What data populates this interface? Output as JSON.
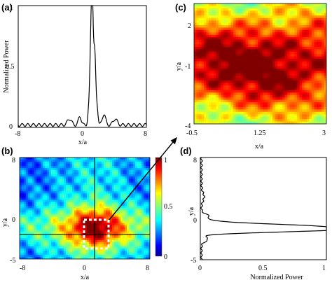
{
  "figure": {
    "background": "#ffffff"
  },
  "chart_data": [
    {
      "panel": "(a)",
      "type": "line",
      "xlabel": "x/a",
      "ylabel": "Normalized Power",
      "xlim": [
        -8,
        8
      ],
      "ylim": [
        0,
        1
      ],
      "xticks": [
        "-8",
        "0",
        "8"
      ],
      "yticks": [
        "0",
        "0.5",
        "1"
      ],
      "color": "#000000",
      "peaks": [
        {
          "center": 1.25,
          "height": 0.96,
          "width": 0.12
        },
        {
          "center": 1.05,
          "height": 0.55,
          "width": 0.12
        },
        {
          "center": 1.55,
          "height": 0.58,
          "width": 0.13
        },
        {
          "center": 0.8,
          "height": 0.12,
          "width": 0.12
        },
        {
          "center": 1.85,
          "height": 0.14,
          "width": 0.12
        },
        {
          "center": -0.3,
          "height": 0.07,
          "width": 0.18
        },
        {
          "center": 2.7,
          "height": 0.09,
          "width": 0.2
        },
        {
          "center": -1.6,
          "height": 0.05,
          "width": 0.25
        },
        {
          "center": 4.1,
          "height": 0.05,
          "width": 0.25
        }
      ]
    },
    {
      "panel": "(b)",
      "type": "heatmap",
      "xlabel": "x/a",
      "ylabel": "y/a",
      "xlim": [
        -8,
        8
      ],
      "ylim": [
        -5,
        8
      ],
      "xticks": [
        "-8",
        "0",
        "8"
      ],
      "yticks": [
        "-5",
        "0",
        "8"
      ],
      "colorbar": {
        "min": 0,
        "max": 1,
        "ticks": [
          "0",
          "0.5",
          "1"
        ]
      },
      "crosshair": {
        "x": 1.25,
        "y": -1.0
      },
      "highlight_box": {
        "x": [
          -0.5,
          3
        ],
        "y": [
          -4,
          2
        ],
        "style": "dashed",
        "color": "#ffffff"
      },
      "colormap": "jet"
    },
    {
      "panel": "(c)",
      "type": "heatmap",
      "xlabel": "x/a",
      "ylabel": "y/a",
      "xlim": [
        -0.5,
        3
      ],
      "ylim": [
        -4,
        2
      ],
      "xticks": [
        "-0.5",
        "1.25",
        "3"
      ],
      "yticks": [
        "-4",
        "-1",
        "2"
      ],
      "colormap": "jet"
    },
    {
      "panel": "(d)",
      "type": "line",
      "xlabel": "Normalized  Power",
      "ylabel": "y/a",
      "xlim": [
        0,
        1
      ],
      "ylim": [
        -5,
        8
      ],
      "xticks": [
        "0",
        "0.5",
        "1"
      ],
      "yticks": [
        "-5",
        "0",
        "8"
      ],
      "color": "#000000",
      "peaks": [
        {
          "center": -1.15,
          "height": 0.95,
          "width": 0.22
        },
        {
          "center": -0.7,
          "height": 0.78,
          "width": 0.25
        },
        {
          "center": -1.5,
          "height": 0.3,
          "width": 0.2
        },
        {
          "center": -0.2,
          "height": 0.12,
          "width": 0.2
        },
        {
          "center": 0.5,
          "height": 0.06,
          "width": 0.3
        },
        {
          "center": -2.4,
          "height": 0.05,
          "width": 0.3
        },
        {
          "center": 3.0,
          "height": 0.02,
          "width": 0.5
        }
      ]
    }
  ]
}
